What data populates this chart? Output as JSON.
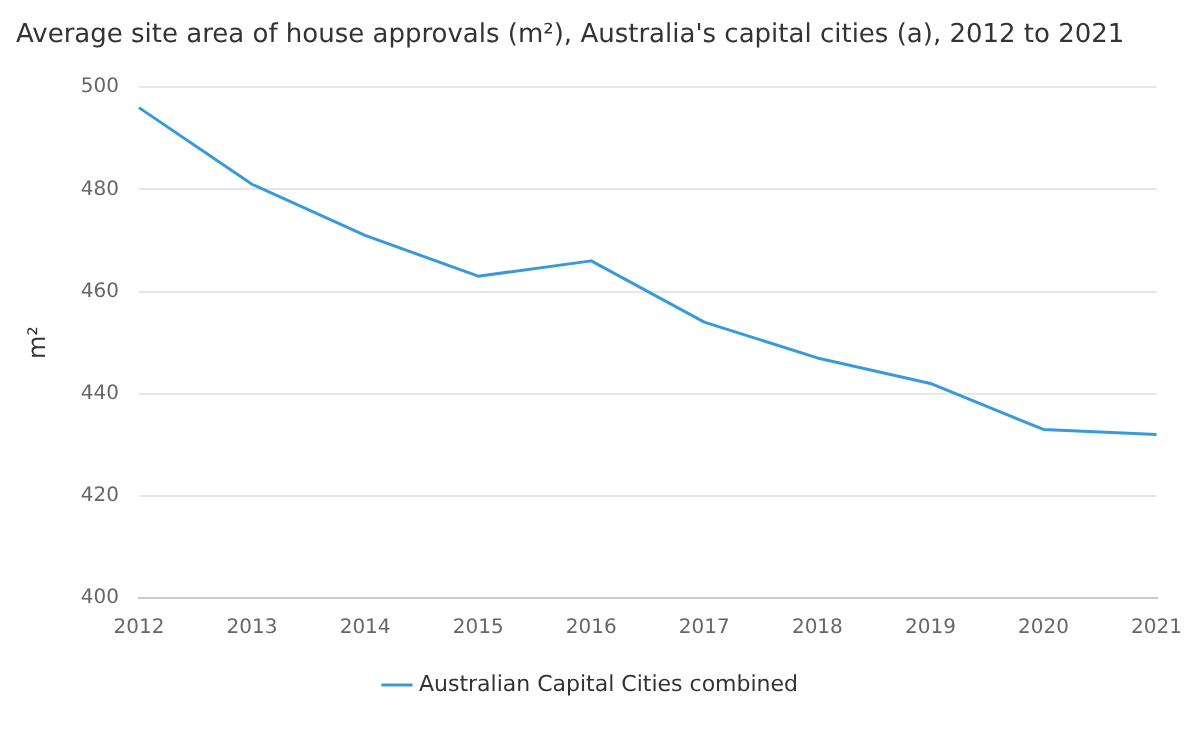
{
  "chart_data": {
    "type": "line",
    "title": "Average site area of house approvals (m²), Australia's capital cities (a), 2012 to 2021",
    "ylabel": "m²",
    "categories": [
      "2012",
      "2013",
      "2014",
      "2015",
      "2016",
      "2017",
      "2018",
      "2019",
      "2020",
      "2021"
    ],
    "series": [
      {
        "name": "Australian Capital Cities combined",
        "color": "#3a9ad9",
        "values": [
          496,
          481,
          471,
          463,
          466,
          454,
          447,
          442,
          433,
          432
        ]
      }
    ],
    "ylim": [
      400,
      500
    ],
    "yticks": [
      400,
      420,
      440,
      460,
      480,
      500
    ],
    "grid": "y",
    "legend": "bottom",
    "marker": "none",
    "line_style": "solid"
  }
}
